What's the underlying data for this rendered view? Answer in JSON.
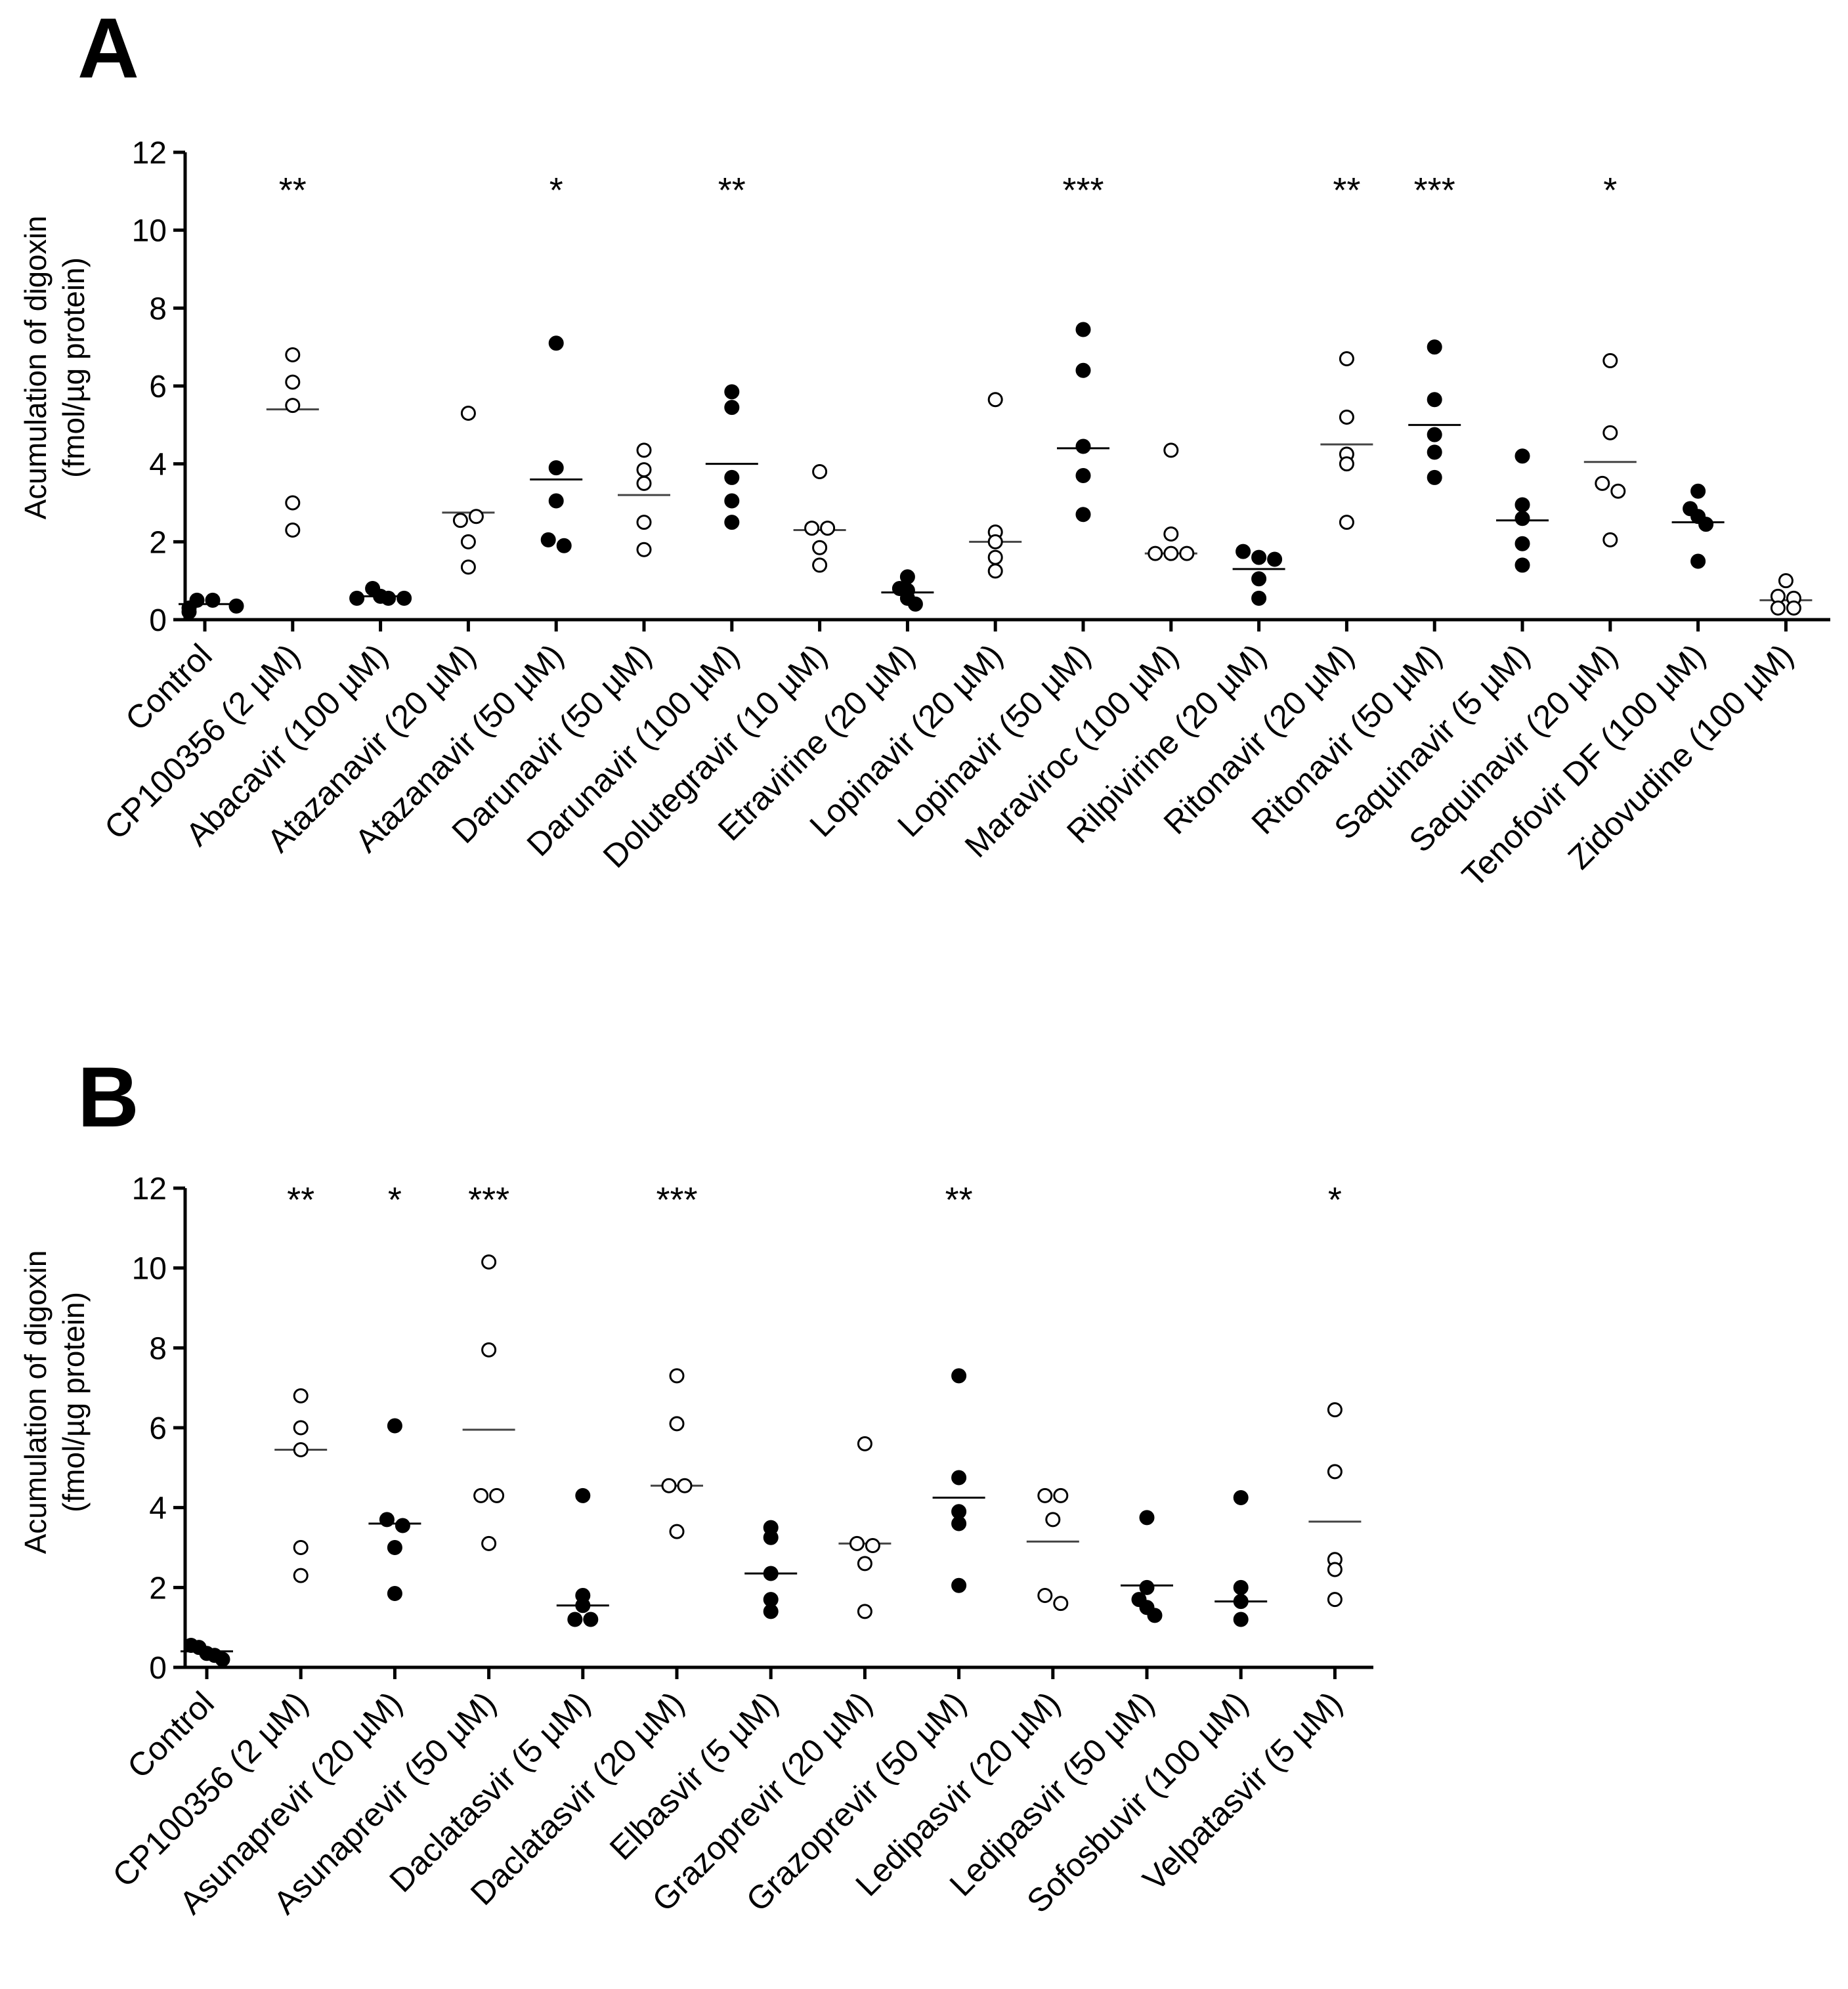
{
  "chart_data": [
    {
      "type": "scatter",
      "panel": "A",
      "ylabel_line1": "Acumulation of digoxin",
      "ylabel_line2": "(fmol/µg protein)",
      "ylim": [
        0,
        12
      ],
      "yticks": [
        "0",
        "2",
        "4",
        "6",
        "8",
        "10",
        "12"
      ],
      "grid": false,
      "categories": [
        {
          "label": "Control",
          "fill": "filled",
          "mean": 0.4,
          "values": [
            0.2,
            0.3,
            0.5,
            0.5,
            0.35
          ],
          "sig": ""
        },
        {
          "label": "CP100356 (2 µM)",
          "fill": "open",
          "mean": 5.4,
          "values": [
            6.8,
            6.1,
            5.5,
            3.0,
            2.3
          ],
          "sig": "**"
        },
        {
          "label": "Abacavir (100 µM)",
          "fill": "filled",
          "mean": 0.6,
          "values": [
            0.8,
            0.55,
            0.6,
            0.55,
            0.55
          ],
          "sig": ""
        },
        {
          "label": "Atazanavir (20 µM)",
          "fill": "open",
          "mean": 2.75,
          "values": [
            5.3,
            2.55,
            2.65,
            2.0,
            1.35
          ],
          "sig": ""
        },
        {
          "label": "Atazanavir (50 µM)",
          "fill": "filled",
          "mean": 3.6,
          "values": [
            7.1,
            3.9,
            3.05,
            2.05,
            1.9
          ],
          "sig": "*"
        },
        {
          "label": "Darunavir (50 µM)",
          "fill": "open",
          "mean": 3.2,
          "values": [
            4.35,
            3.85,
            3.5,
            2.5,
            1.8
          ],
          "sig": ""
        },
        {
          "label": "Darunavir (100 µM)",
          "fill": "filled",
          "mean": 4.0,
          "values": [
            5.85,
            5.45,
            3.65,
            3.05,
            2.5
          ],
          "sig": "**"
        },
        {
          "label": "Dolutegravir (10 µM)",
          "fill": "open",
          "mean": 2.3,
          "values": [
            3.8,
            2.35,
            2.35,
            1.85,
            1.4
          ],
          "sig": ""
        },
        {
          "label": "Etravirine (20 µM)",
          "fill": "filled",
          "mean": 0.7,
          "values": [
            1.1,
            0.8,
            0.75,
            0.55,
            0.4
          ],
          "sig": ""
        },
        {
          "label": "Lopinavir (20 µM)",
          "fill": "open",
          "mean": 2.0,
          "values": [
            5.65,
            2.25,
            2.0,
            1.6,
            1.25
          ],
          "sig": ""
        },
        {
          "label": "Lopinavir (50 µM)",
          "fill": "filled",
          "mean": 4.4,
          "values": [
            7.45,
            6.4,
            4.45,
            3.7,
            2.7
          ],
          "sig": "***"
        },
        {
          "label": "Maraviroc (100 µM)",
          "fill": "open",
          "mean": 1.7,
          "values": [
            4.35,
            2.2,
            1.7,
            1.7,
            1.7
          ],
          "sig": ""
        },
        {
          "label": "Rilpivirine (20 µM)",
          "fill": "filled",
          "mean": 1.3,
          "values": [
            1.75,
            1.6,
            1.55,
            1.05,
            0.55
          ],
          "sig": ""
        },
        {
          "label": "Ritonavir (20 µM)",
          "fill": "open",
          "mean": 4.5,
          "values": [
            6.7,
            5.2,
            4.25,
            4.0,
            2.5
          ],
          "sig": "**"
        },
        {
          "label": "Ritonavir (50 µM)",
          "fill": "filled",
          "mean": 5.0,
          "values": [
            7.0,
            5.65,
            4.75,
            4.3,
            3.65
          ],
          "sig": "***"
        },
        {
          "label": "Saquinavir (5 µM)",
          "fill": "filled",
          "mean": 2.55,
          "values": [
            4.2,
            2.95,
            2.6,
            1.95,
            1.4
          ],
          "sig": ""
        },
        {
          "label": "Saquinavir (20 µM)",
          "fill": "open",
          "mean": 4.05,
          "values": [
            6.65,
            4.8,
            3.5,
            3.3,
            2.05
          ],
          "sig": "*"
        },
        {
          "label": "Tenofovir DF (100 µM)",
          "fill": "filled",
          "mean": 2.5,
          "values": [
            3.3,
            2.85,
            2.65,
            2.45,
            1.5
          ],
          "sig": ""
        },
        {
          "label": "Zidovudine (100 µM)",
          "fill": "open",
          "mean": 0.5,
          "values": [
            1.0,
            0.6,
            0.55,
            0.3,
            0.3
          ],
          "sig": ""
        }
      ]
    },
    {
      "type": "scatter",
      "panel": "B",
      "ylabel_line1": "Acumulation of digoxin",
      "ylabel_line2": "(fmol/µg protein)",
      "ylim": [
        0,
        12
      ],
      "yticks": [
        "0",
        "2",
        "4",
        "6",
        "8",
        "10",
        "12"
      ],
      "grid": false,
      "categories": [
        {
          "label": "Control",
          "fill": "filled",
          "mean": 0.4,
          "values": [
            0.55,
            0.5,
            0.35,
            0.3,
            0.2
          ],
          "sig": ""
        },
        {
          "label": "CP100356 (2 µM)",
          "fill": "open",
          "mean": 5.45,
          "values": [
            6.8,
            6.0,
            5.45,
            3.0,
            2.3
          ],
          "sig": "**"
        },
        {
          "label": "Asunaprevir (20 µM)",
          "fill": "filled",
          "mean": 3.6,
          "values": [
            6.05,
            3.7,
            3.55,
            3.0,
            1.85
          ],
          "sig": "*"
        },
        {
          "label": "Asunaprevir (50 µM)",
          "fill": "open",
          "mean": 5.95,
          "values": [
            10.15,
            7.95,
            4.3,
            4.3,
            3.1
          ],
          "sig": "***"
        },
        {
          "label": "Daclatasvir (5 µM)",
          "fill": "filled",
          "mean": 1.55,
          "values": [
            4.3,
            1.8,
            1.55,
            1.2,
            1.2
          ],
          "sig": ""
        },
        {
          "label": "Daclatasvir (20 µM)",
          "fill": "open",
          "mean": 4.55,
          "values": [
            7.3,
            6.1,
            4.55,
            4.55,
            3.4
          ],
          "sig": "***"
        },
        {
          "label": "Elbasvir (5 µM)",
          "fill": "filled",
          "mean": 2.35,
          "values": [
            3.5,
            3.25,
            2.35,
            1.7,
            1.4
          ],
          "sig": ""
        },
        {
          "label": "Grazoprevir (20 µM)",
          "fill": "open",
          "mean": 3.1,
          "values": [
            5.6,
            3.1,
            3.05,
            2.6,
            1.4
          ],
          "sig": ""
        },
        {
          "label": "Grazoprevir (50 µM)",
          "fill": "filled",
          "mean": 4.25,
          "values": [
            7.3,
            4.75,
            3.9,
            3.6,
            2.05
          ],
          "sig": "**"
        },
        {
          "label": "Ledipasvir (20 µM)",
          "fill": "open",
          "mean": 3.15,
          "values": [
            4.3,
            4.3,
            3.7,
            1.8,
            1.6
          ],
          "sig": ""
        },
        {
          "label": "Ledipasvir (50 µM)",
          "fill": "filled",
          "mean": 2.05,
          "values": [
            3.75,
            2.0,
            1.7,
            1.5,
            1.3
          ],
          "sig": ""
        },
        {
          "label": "Sofosbuvir (100 µM)",
          "fill": "filled",
          "mean": 1.65,
          "values": [
            4.25,
            2.0,
            1.65,
            1.2
          ],
          "sig": ""
        },
        {
          "label": "Velpatasvir (5 µM)",
          "fill": "open",
          "mean": 3.65,
          "values": [
            6.45,
            4.9,
            2.7,
            2.45,
            1.7
          ],
          "sig": "*"
        }
      ]
    }
  ]
}
